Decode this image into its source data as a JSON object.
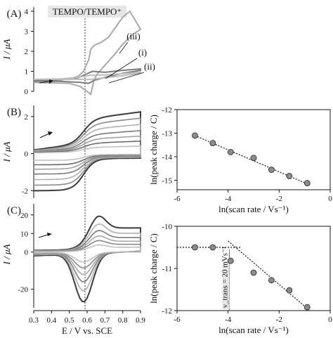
{
  "chart_data": [
    {
      "panel": "(A)",
      "type": "line",
      "title": "",
      "annotation": "TEMPO/TEMPO⁺",
      "ylabel": "I / μA",
      "ylim": [
        0,
        4
      ],
      "yticks": [
        "0",
        "1",
        "2",
        "3",
        "4"
      ],
      "xlim": [
        0.3,
        0.9
      ],
      "curve_labels": [
        "(iii)",
        "(i)",
        "(ii)"
      ],
      "series": [
        {
          "label": "(iii)",
          "color": "#a9a9a9",
          "forward": [
            [
              0.3,
              0.5
            ],
            [
              0.4,
              0.53
            ],
            [
              0.5,
              0.62
            ],
            [
              0.55,
              0.75
            ],
            [
              0.58,
              1.0
            ],
            [
              0.61,
              1.6
            ],
            [
              0.62,
              2.1
            ],
            [
              0.64,
              2.3
            ],
            [
              0.68,
              2.45
            ],
            [
              0.72,
              2.7
            ],
            [
              0.76,
              3.2
            ],
            [
              0.8,
              3.7
            ],
            [
              0.84,
              4.0
            ]
          ],
          "reverse": [
            [
              0.9,
              3.1
            ],
            [
              0.85,
              2.8
            ],
            [
              0.8,
              2.35
            ],
            [
              0.75,
              1.8
            ],
            [
              0.7,
              1.3
            ],
            [
              0.66,
              0.9
            ],
            [
              0.64,
              0.6
            ],
            [
              0.63,
              0.2
            ],
            [
              0.62,
              -0.15
            ],
            [
              0.6,
              0.0
            ],
            [
              0.56,
              0.25
            ],
            [
              0.5,
              0.4
            ],
            [
              0.4,
              0.42
            ],
            [
              0.3,
              0.45
            ]
          ]
        },
        {
          "label": "(i)",
          "color": "#7a7a7a",
          "forward": [
            [
              0.3,
              0.55
            ],
            [
              0.45,
              0.58
            ],
            [
              0.55,
              0.68
            ],
            [
              0.6,
              0.88
            ],
            [
              0.63,
              1.0
            ],
            [
              0.7,
              0.95
            ],
            [
              0.8,
              1.05
            ],
            [
              0.9,
              1.12
            ]
          ],
          "reverse": [
            [
              0.9,
              1.05
            ],
            [
              0.8,
              0.9
            ],
            [
              0.7,
              0.7
            ],
            [
              0.64,
              0.55
            ],
            [
              0.61,
              0.4
            ],
            [
              0.56,
              0.45
            ],
            [
              0.45,
              0.5
            ],
            [
              0.3,
              0.52
            ]
          ]
        },
        {
          "label": "(ii)",
          "color": "#bdbdbd",
          "forward": [
            [
              0.3,
              0.6
            ],
            [
              0.45,
              0.62
            ],
            [
              0.55,
              0.7
            ],
            [
              0.62,
              0.8
            ],
            [
              0.7,
              0.82
            ],
            [
              0.8,
              0.88
            ],
            [
              0.9,
              0.95
            ]
          ],
          "reverse": [
            [
              0.9,
              0.9
            ],
            [
              0.8,
              0.78
            ],
            [
              0.7,
              0.68
            ],
            [
              0.62,
              0.6
            ],
            [
              0.55,
              0.6
            ],
            [
              0.45,
              0.6
            ],
            [
              0.3,
              0.6
            ]
          ]
        }
      ]
    },
    {
      "panel": "(B)",
      "type": "line",
      "ylabel": "I / μA",
      "ylim": [
        -2.4,
        2.6
      ],
      "yticks": [
        "-2",
        "0",
        "2"
      ],
      "xlim": [
        0.3,
        0.9
      ],
      "description_scale": [
        1.0,
        0.85,
        0.7,
        0.55,
        0.42,
        0.3,
        0.18
      ]
    },
    {
      "panel": "(C)",
      "type": "line",
      "ylabel": "I / μA",
      "ylim": [
        -30,
        26
      ],
      "yticks": [
        "-20",
        "0",
        "10",
        "20"
      ],
      "xlim": [
        0.3,
        0.9
      ],
      "xticks": [
        "0.3",
        "0.4",
        "0.5",
        "0.6",
        "0.7",
        "0.8",
        "0.9"
      ],
      "xlabel": "E / V vs. SCE",
      "description_scale": [
        1.0,
        0.78,
        0.6,
        0.45,
        0.32,
        0.2
      ]
    },
    {
      "panel": "upper-right",
      "type": "scatter",
      "xlabel": "ln(scan rate / Vs⁻¹)",
      "ylabel": "ln(peak charge / C)",
      "xlim": [
        -6,
        0
      ],
      "ylim": [
        -15.4,
        -12
      ],
      "xticks": [
        "-6",
        "-4",
        "-2",
        "0"
      ],
      "yticks": [
        "-12",
        "-13",
        "-14",
        "-15"
      ],
      "points": [
        [
          -5.3,
          -13.1
        ],
        [
          -4.6,
          -13.42
        ],
        [
          -3.9,
          -13.8
        ],
        [
          -3.0,
          -14.05
        ],
        [
          -2.3,
          -14.55
        ],
        [
          -1.6,
          -14.82
        ],
        [
          -0.9,
          -15.12
        ]
      ],
      "fit": [
        [
          -5.3,
          -13.1
        ],
        [
          -0.8,
          -15.2
        ]
      ]
    },
    {
      "panel": "lower-right",
      "type": "scatter",
      "xlabel": "ln(scan rate / Vs⁻¹)",
      "ylabel": "ln(peak charge / C)",
      "xlim": [
        -6,
        0
      ],
      "ylim": [
        -12,
        -10
      ],
      "xticks": [
        "-6",
        "-4",
        "-2",
        "0"
      ],
      "yticks": [
        "-10",
        "-11",
        "-12"
      ],
      "annotation": "ν_trans = 20 mVs⁻¹",
      "points": [
        [
          -5.3,
          -10.5
        ],
        [
          -4.6,
          -10.5
        ],
        [
          -3.9,
          -10.82
        ],
        [
          -3.0,
          -11.1
        ],
        [
          -2.3,
          -11.28
        ],
        [
          -1.6,
          -11.52
        ],
        [
          -0.9,
          -11.92
        ]
      ],
      "fit_flat": [
        [
          -6,
          -10.5
        ],
        [
          -3.5,
          -10.5
        ]
      ],
      "fit_slope": [
        [
          -4.0,
          -10.35
        ],
        [
          -0.8,
          -12.0
        ]
      ]
    }
  ]
}
